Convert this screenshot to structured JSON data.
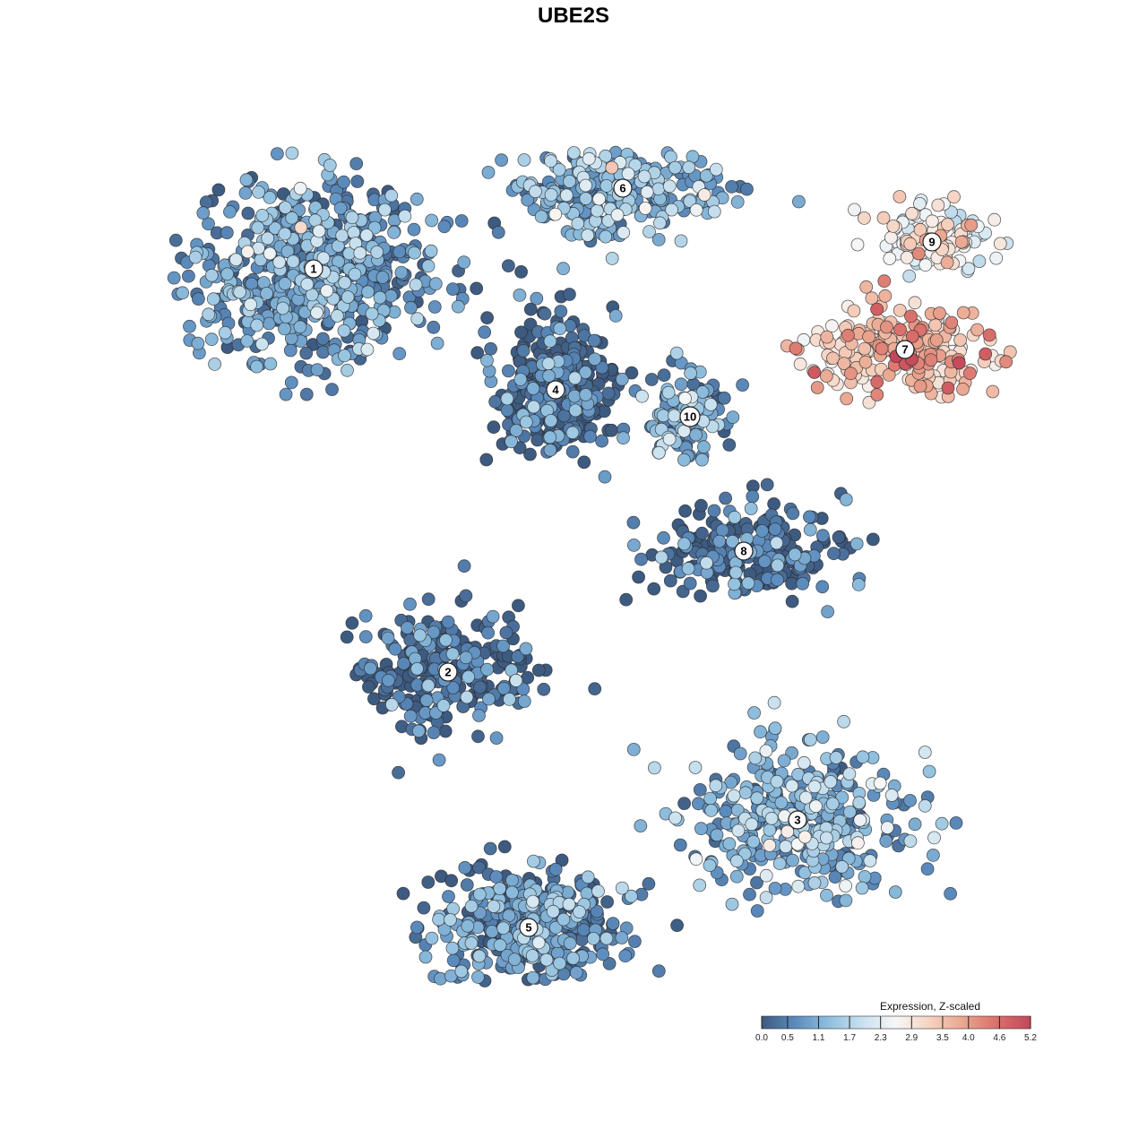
{
  "chart_data": {
    "type": "scatter",
    "title": "UBE2S",
    "legend": {
      "title": "Expression, Z-scaled",
      "ticks": [
        "0.0",
        "0.5",
        "1.1",
        "1.7",
        "2.3",
        "2.9",
        "3.5",
        "4.0",
        "4.6",
        "5.2"
      ],
      "range": [
        0.0,
        5.2
      ],
      "colors": [
        "#3d5a80",
        "#5b8bbd",
        "#8fbfde",
        "#c9e1ef",
        "#f7f7f7",
        "#f6d2c0",
        "#eaa58f",
        "#d9706b",
        "#c3475a"
      ],
      "placement": "bottom-right"
    },
    "clusters": [
      {
        "label": "1",
        "x": -8.0,
        "y": 7.0,
        "mean_expression": 1.0
      },
      {
        "label": "2",
        "x": -3.0,
        "y": -8.0,
        "mean_expression": 0.4
      },
      {
        "label": "3",
        "x": 10.0,
        "y": -13.5,
        "mean_expression": 1.3
      },
      {
        "label": "4",
        "x": 1.0,
        "y": 2.5,
        "mean_expression": 0.4
      },
      {
        "label": "5",
        "x": 0.0,
        "y": -17.5,
        "mean_expression": 0.9
      },
      {
        "label": "6",
        "x": 3.5,
        "y": 10.0,
        "mean_expression": 1.3
      },
      {
        "label": "7",
        "x": 14.0,
        "y": 4.0,
        "mean_expression": 3.7
      },
      {
        "label": "9",
        "x": 15.0,
        "y": 8.0,
        "mean_expression": 2.7
      },
      {
        "label": "8",
        "x": 8.0,
        "y": -3.5,
        "mean_expression": 0.5
      },
      {
        "label": "10",
        "x": 6.0,
        "y": 1.5,
        "mean_expression": 1.2
      }
    ]
  }
}
